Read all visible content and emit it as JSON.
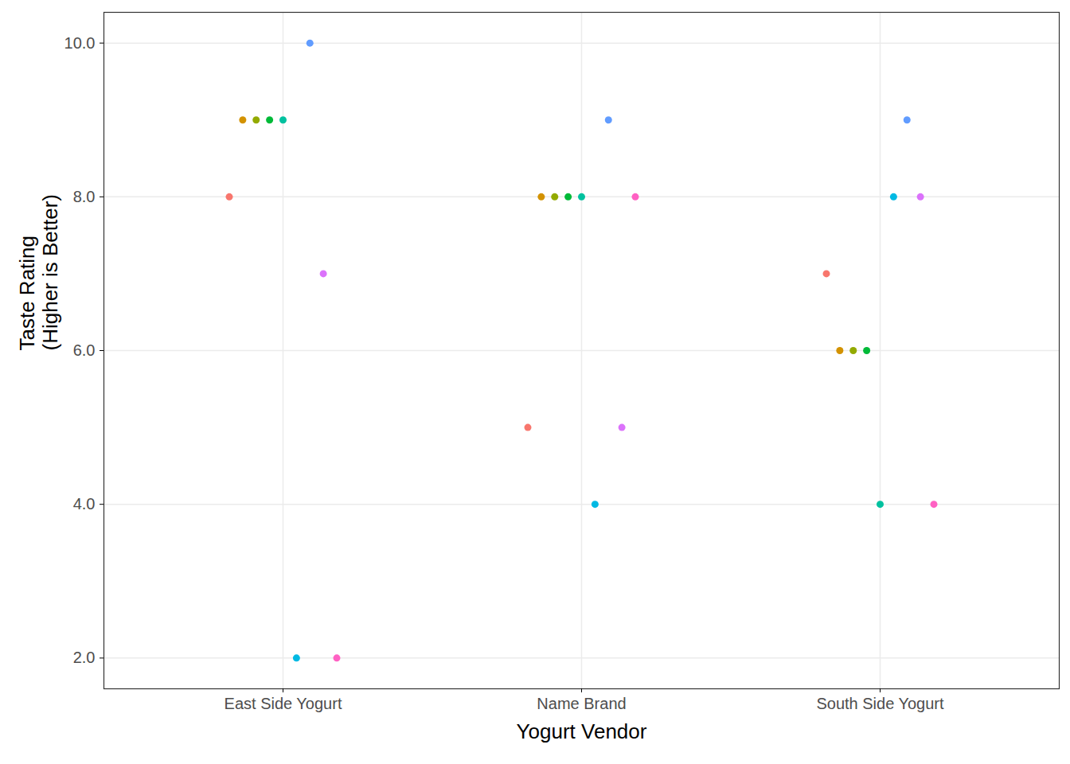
{
  "chart_data": {
    "type": "scatter",
    "xlabel": "Yogurt Vendor",
    "ylabel": "Taste Rating\n(Higher is Better)",
    "categories": [
      "East Side Yogurt",
      "Name Brand",
      "South Side Yogurt"
    ],
    "series": [
      {
        "color": "#F8766D",
        "values": [
          8,
          5,
          7
        ]
      },
      {
        "color": "#D39200",
        "values": [
          9,
          8,
          6
        ]
      },
      {
        "color": "#93AA00",
        "values": [
          9,
          8,
          6
        ]
      },
      {
        "color": "#00BA38",
        "values": [
          9,
          8,
          6
        ]
      },
      {
        "color": "#00C19F",
        "values": [
          9,
          8,
          4
        ]
      },
      {
        "color": "#00B9E3",
        "values": [
          2,
          4,
          8
        ]
      },
      {
        "color": "#619CFF",
        "values": [
          10,
          9,
          9
        ]
      },
      {
        "color": "#DB72FB",
        "values": [
          7,
          5,
          8
        ]
      },
      {
        "color": "#FF61C3",
        "values": [
          2,
          8,
          4
        ]
      }
    ],
    "ylim": [
      1.6,
      10.4
    ],
    "yticks": [
      2,
      4,
      6,
      8,
      10
    ],
    "grid": true
  }
}
